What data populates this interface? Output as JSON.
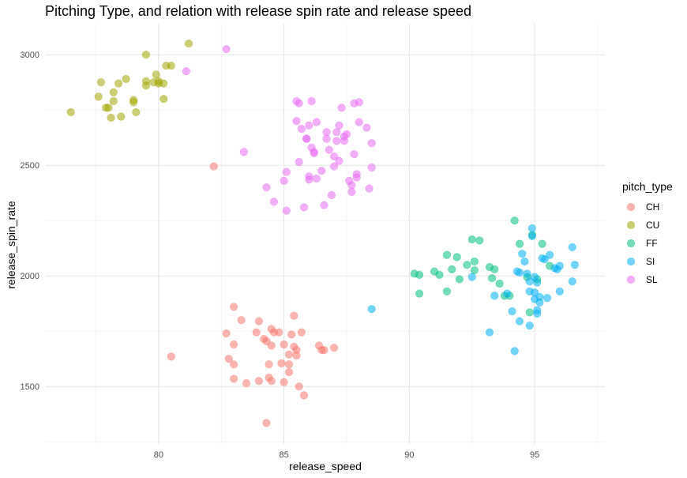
{
  "chart_data": {
    "type": "scatter",
    "title": "Pitching Type, and relation with release spin rate and release speed",
    "xlabel": "release_speed",
    "ylabel": "release_spin_rate",
    "xlim": [
      75.5,
      97.8
    ],
    "ylim": [
      1240,
      3140
    ],
    "x_ticks": [
      80,
      85,
      90,
      95
    ],
    "y_ticks": [
      1500,
      2000,
      2500,
      3000
    ],
    "grid": true,
    "legend_title": "pitch_type",
    "legend_position": "right",
    "point_opacity": 0.55,
    "series": [
      {
        "name": "CH",
        "color": "#F8766D",
        "points": [
          [
            82.2,
            2495
          ],
          [
            80.5,
            1635
          ],
          [
            82.7,
            1740
          ],
          [
            82.8,
            1625
          ],
          [
            83.0,
            1860
          ],
          [
            83.0,
            1690
          ],
          [
            83.0,
            1600
          ],
          [
            83.0,
            1535
          ],
          [
            83.3,
            1800
          ],
          [
            83.5,
            1515
          ],
          [
            83.9,
            1745
          ],
          [
            84.0,
            1795
          ],
          [
            84.0,
            1525
          ],
          [
            84.2,
            1715
          ],
          [
            84.3,
            1705
          ],
          [
            84.4,
            1540
          ],
          [
            84.4,
            1600
          ],
          [
            84.5,
            1760
          ],
          [
            84.5,
            1685
          ],
          [
            84.5,
            1525
          ],
          [
            84.6,
            1745
          ],
          [
            84.8,
            1745
          ],
          [
            84.9,
            1605
          ],
          [
            85.0,
            1690
          ],
          [
            85.0,
            1520
          ],
          [
            85.2,
            1645
          ],
          [
            85.2,
            1600
          ],
          [
            85.2,
            1565
          ],
          [
            85.3,
            1735
          ],
          [
            85.4,
            1820
          ],
          [
            85.4,
            1680
          ],
          [
            85.5,
            1665
          ],
          [
            85.5,
            1640
          ],
          [
            85.6,
            1500
          ],
          [
            85.7,
            1745
          ],
          [
            85.8,
            1460
          ],
          [
            86.4,
            1685
          ],
          [
            86.5,
            1665
          ],
          [
            86.6,
            1665
          ],
          [
            87.0,
            1675
          ],
          [
            84.3,
            1335
          ]
        ]
      },
      {
        "name": "CU",
        "color": "#A3A500",
        "points": [
          [
            76.5,
            2740
          ],
          [
            77.6,
            2810
          ],
          [
            77.7,
            2875
          ],
          [
            77.9,
            2760
          ],
          [
            78.0,
            2760
          ],
          [
            78.1,
            2715
          ],
          [
            78.2,
            2790
          ],
          [
            78.2,
            2830
          ],
          [
            78.4,
            2870
          ],
          [
            78.5,
            2720
          ],
          [
            78.7,
            2890
          ],
          [
            79.0,
            2795
          ],
          [
            79.0,
            2785
          ],
          [
            79.1,
            2740
          ],
          [
            79.5,
            2880
          ],
          [
            79.5,
            2860
          ],
          [
            79.5,
            3000
          ],
          [
            79.9,
            2910
          ],
          [
            80.0,
            2880
          ],
          [
            80.0,
            2870
          ],
          [
            79.8,
            2875
          ],
          [
            80.2,
            2870
          ],
          [
            80.2,
            2800
          ],
          [
            80.3,
            2950
          ],
          [
            80.5,
            2950
          ],
          [
            81.2,
            3050
          ]
        ]
      },
      {
        "name": "FF",
        "color": "#00BF7D",
        "points": [
          [
            90.2,
            2010
          ],
          [
            90.4,
            2005
          ],
          [
            90.4,
            1920
          ],
          [
            91.0,
            2020
          ],
          [
            91.2,
            2005
          ],
          [
            91.5,
            2095
          ],
          [
            91.5,
            1930
          ],
          [
            91.7,
            2030
          ],
          [
            91.9,
            2085
          ],
          [
            92.0,
            1985
          ],
          [
            92.3,
            2050
          ],
          [
            92.5,
            2165
          ],
          [
            92.6,
            2065
          ],
          [
            92.6,
            2025
          ],
          [
            93.2,
            2040
          ],
          [
            93.3,
            1990
          ],
          [
            93.4,
            2030
          ],
          [
            93.6,
            1965
          ],
          [
            93.8,
            1910
          ],
          [
            94.0,
            1910
          ],
          [
            94.2,
            2250
          ],
          [
            94.4,
            2145
          ],
          [
            94.7,
            1995
          ],
          [
            94.8,
            1835
          ],
          [
            95.1,
            1985
          ],
          [
            95.3,
            2145
          ],
          [
            95.6,
            2045
          ],
          [
            94.9,
            2185
          ],
          [
            92.8,
            2160
          ]
        ]
      },
      {
        "name": "SI",
        "color": "#00B0F6",
        "points": [
          [
            88.5,
            1850
          ],
          [
            92.5,
            1995
          ],
          [
            93.2,
            1745
          ],
          [
            93.4,
            1910
          ],
          [
            93.9,
            1920
          ],
          [
            94.1,
            1840
          ],
          [
            94.2,
            1660
          ],
          [
            94.3,
            2020
          ],
          [
            94.4,
            2015
          ],
          [
            94.4,
            1795
          ],
          [
            94.5,
            2100
          ],
          [
            94.6,
            2065
          ],
          [
            94.7,
            2010
          ],
          [
            94.8,
            1975
          ],
          [
            94.8,
            1930
          ],
          [
            94.8,
            1775
          ],
          [
            94.9,
            2180
          ],
          [
            94.9,
            2215
          ],
          [
            95.0,
            1995
          ],
          [
            95.0,
            1925
          ],
          [
            95.0,
            1895
          ],
          [
            95.1,
            1830
          ],
          [
            95.1,
            1970
          ],
          [
            95.2,
            1880
          ],
          [
            95.2,
            1905
          ],
          [
            95.3,
            2080
          ],
          [
            95.4,
            2075
          ],
          [
            95.5,
            1900
          ],
          [
            95.6,
            2095
          ],
          [
            95.8,
            2035
          ],
          [
            95.9,
            2030
          ],
          [
            96.0,
            2045
          ],
          [
            96.0,
            1930
          ],
          [
            96.5,
            2130
          ],
          [
            96.6,
            2050
          ],
          [
            96.5,
            1975
          ],
          [
            95.1,
            1845
          ]
        ]
      },
      {
        "name": "SL",
        "color": "#E76BF3",
        "points": [
          [
            82.7,
            3025
          ],
          [
            81.1,
            2925
          ],
          [
            83.4,
            2560
          ],
          [
            84.3,
            2400
          ],
          [
            84.6,
            2335
          ],
          [
            85.0,
            2430
          ],
          [
            85.1,
            2295
          ],
          [
            85.1,
            2470
          ],
          [
            85.5,
            2790
          ],
          [
            85.5,
            2700
          ],
          [
            85.6,
            2780
          ],
          [
            85.6,
            2515
          ],
          [
            85.7,
            2665
          ],
          [
            85.8,
            2310
          ],
          [
            85.9,
            2620
          ],
          [
            85.9,
            2620
          ],
          [
            86.0,
            2680
          ],
          [
            86.0,
            2450
          ],
          [
            86.0,
            2435
          ],
          [
            86.1,
            2790
          ],
          [
            86.1,
            2580
          ],
          [
            86.2,
            2560
          ],
          [
            86.2,
            2555
          ],
          [
            86.3,
            2440
          ],
          [
            86.3,
            2695
          ],
          [
            86.5,
            2475
          ],
          [
            86.6,
            2320
          ],
          [
            86.7,
            2650
          ],
          [
            86.7,
            2620
          ],
          [
            86.8,
            2570
          ],
          [
            86.9,
            2365
          ],
          [
            87.0,
            2540
          ],
          [
            87.0,
            2495
          ],
          [
            87.1,
            2650
          ],
          [
            87.1,
            2610
          ],
          [
            87.2,
            2680
          ],
          [
            87.2,
            2520
          ],
          [
            87.3,
            2760
          ],
          [
            87.4,
            2610
          ],
          [
            87.4,
            2630
          ],
          [
            87.5,
            2640
          ],
          [
            87.6,
            2430
          ],
          [
            87.7,
            2410
          ],
          [
            87.7,
            2380
          ],
          [
            87.8,
            2780
          ],
          [
            87.8,
            2550
          ],
          [
            87.9,
            2445
          ],
          [
            87.9,
            2460
          ],
          [
            88.0,
            2695
          ],
          [
            88.0,
            2785
          ],
          [
            88.3,
            2670
          ],
          [
            88.4,
            2395
          ],
          [
            88.5,
            2490
          ],
          [
            88.5,
            2600
          ]
        ]
      }
    ]
  }
}
